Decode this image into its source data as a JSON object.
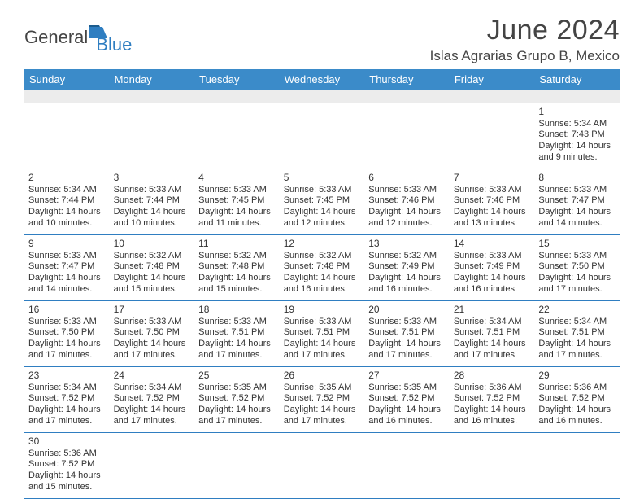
{
  "brand": {
    "general": "General",
    "blue": "Blue"
  },
  "header": {
    "month_title": "June 2024",
    "location": "Islas Agrarias Grupo B, Mexico"
  },
  "colors": {
    "header_bg": "#3b8bc9",
    "header_text": "#ffffff",
    "row_divider": "#2f7ec1",
    "blank_row_bg": "#ececec",
    "text": "#333333",
    "logo_accent": "#2f7ec1"
  },
  "typography": {
    "title_fontsize_pt": 26,
    "location_fontsize_pt": 13,
    "dayhead_fontsize_pt": 10,
    "cell_fontsize_pt": 8
  },
  "days": [
    "Sunday",
    "Monday",
    "Tuesday",
    "Wednesday",
    "Thursday",
    "Friday",
    "Saturday"
  ],
  "weeks": [
    [
      null,
      null,
      null,
      null,
      null,
      null,
      {
        "n": "1",
        "sr": "Sunrise: 5:34 AM",
        "ss": "Sunset: 7:43 PM",
        "dl1": "Daylight: 14 hours",
        "dl2": "and 9 minutes."
      }
    ],
    [
      {
        "n": "2",
        "sr": "Sunrise: 5:34 AM",
        "ss": "Sunset: 7:44 PM",
        "dl1": "Daylight: 14 hours",
        "dl2": "and 10 minutes."
      },
      {
        "n": "3",
        "sr": "Sunrise: 5:33 AM",
        "ss": "Sunset: 7:44 PM",
        "dl1": "Daylight: 14 hours",
        "dl2": "and 10 minutes."
      },
      {
        "n": "4",
        "sr": "Sunrise: 5:33 AM",
        "ss": "Sunset: 7:45 PM",
        "dl1": "Daylight: 14 hours",
        "dl2": "and 11 minutes."
      },
      {
        "n": "5",
        "sr": "Sunrise: 5:33 AM",
        "ss": "Sunset: 7:45 PM",
        "dl1": "Daylight: 14 hours",
        "dl2": "and 12 minutes."
      },
      {
        "n": "6",
        "sr": "Sunrise: 5:33 AM",
        "ss": "Sunset: 7:46 PM",
        "dl1": "Daylight: 14 hours",
        "dl2": "and 12 minutes."
      },
      {
        "n": "7",
        "sr": "Sunrise: 5:33 AM",
        "ss": "Sunset: 7:46 PM",
        "dl1": "Daylight: 14 hours",
        "dl2": "and 13 minutes."
      },
      {
        "n": "8",
        "sr": "Sunrise: 5:33 AM",
        "ss": "Sunset: 7:47 PM",
        "dl1": "Daylight: 14 hours",
        "dl2": "and 14 minutes."
      }
    ],
    [
      {
        "n": "9",
        "sr": "Sunrise: 5:33 AM",
        "ss": "Sunset: 7:47 PM",
        "dl1": "Daylight: 14 hours",
        "dl2": "and 14 minutes."
      },
      {
        "n": "10",
        "sr": "Sunrise: 5:32 AM",
        "ss": "Sunset: 7:48 PM",
        "dl1": "Daylight: 14 hours",
        "dl2": "and 15 minutes."
      },
      {
        "n": "11",
        "sr": "Sunrise: 5:32 AM",
        "ss": "Sunset: 7:48 PM",
        "dl1": "Daylight: 14 hours",
        "dl2": "and 15 minutes."
      },
      {
        "n": "12",
        "sr": "Sunrise: 5:32 AM",
        "ss": "Sunset: 7:48 PM",
        "dl1": "Daylight: 14 hours",
        "dl2": "and 16 minutes."
      },
      {
        "n": "13",
        "sr": "Sunrise: 5:32 AM",
        "ss": "Sunset: 7:49 PM",
        "dl1": "Daylight: 14 hours",
        "dl2": "and 16 minutes."
      },
      {
        "n": "14",
        "sr": "Sunrise: 5:33 AM",
        "ss": "Sunset: 7:49 PM",
        "dl1": "Daylight: 14 hours",
        "dl2": "and 16 minutes."
      },
      {
        "n": "15",
        "sr": "Sunrise: 5:33 AM",
        "ss": "Sunset: 7:50 PM",
        "dl1": "Daylight: 14 hours",
        "dl2": "and 17 minutes."
      }
    ],
    [
      {
        "n": "16",
        "sr": "Sunrise: 5:33 AM",
        "ss": "Sunset: 7:50 PM",
        "dl1": "Daylight: 14 hours",
        "dl2": "and 17 minutes."
      },
      {
        "n": "17",
        "sr": "Sunrise: 5:33 AM",
        "ss": "Sunset: 7:50 PM",
        "dl1": "Daylight: 14 hours",
        "dl2": "and 17 minutes."
      },
      {
        "n": "18",
        "sr": "Sunrise: 5:33 AM",
        "ss": "Sunset: 7:51 PM",
        "dl1": "Daylight: 14 hours",
        "dl2": "and 17 minutes."
      },
      {
        "n": "19",
        "sr": "Sunrise: 5:33 AM",
        "ss": "Sunset: 7:51 PM",
        "dl1": "Daylight: 14 hours",
        "dl2": "and 17 minutes."
      },
      {
        "n": "20",
        "sr": "Sunrise: 5:33 AM",
        "ss": "Sunset: 7:51 PM",
        "dl1": "Daylight: 14 hours",
        "dl2": "and 17 minutes."
      },
      {
        "n": "21",
        "sr": "Sunrise: 5:34 AM",
        "ss": "Sunset: 7:51 PM",
        "dl1": "Daylight: 14 hours",
        "dl2": "and 17 minutes."
      },
      {
        "n": "22",
        "sr": "Sunrise: 5:34 AM",
        "ss": "Sunset: 7:51 PM",
        "dl1": "Daylight: 14 hours",
        "dl2": "and 17 minutes."
      }
    ],
    [
      {
        "n": "23",
        "sr": "Sunrise: 5:34 AM",
        "ss": "Sunset: 7:52 PM",
        "dl1": "Daylight: 14 hours",
        "dl2": "and 17 minutes."
      },
      {
        "n": "24",
        "sr": "Sunrise: 5:34 AM",
        "ss": "Sunset: 7:52 PM",
        "dl1": "Daylight: 14 hours",
        "dl2": "and 17 minutes."
      },
      {
        "n": "25",
        "sr": "Sunrise: 5:35 AM",
        "ss": "Sunset: 7:52 PM",
        "dl1": "Daylight: 14 hours",
        "dl2": "and 17 minutes."
      },
      {
        "n": "26",
        "sr": "Sunrise: 5:35 AM",
        "ss": "Sunset: 7:52 PM",
        "dl1": "Daylight: 14 hours",
        "dl2": "and 17 minutes."
      },
      {
        "n": "27",
        "sr": "Sunrise: 5:35 AM",
        "ss": "Sunset: 7:52 PM",
        "dl1": "Daylight: 14 hours",
        "dl2": "and 16 minutes."
      },
      {
        "n": "28",
        "sr": "Sunrise: 5:36 AM",
        "ss": "Sunset: 7:52 PM",
        "dl1": "Daylight: 14 hours",
        "dl2": "and 16 minutes."
      },
      {
        "n": "29",
        "sr": "Sunrise: 5:36 AM",
        "ss": "Sunset: 7:52 PM",
        "dl1": "Daylight: 14 hours",
        "dl2": "and 16 minutes."
      }
    ],
    [
      {
        "n": "30",
        "sr": "Sunrise: 5:36 AM",
        "ss": "Sunset: 7:52 PM",
        "dl1": "Daylight: 14 hours",
        "dl2": "and 15 minutes."
      },
      null,
      null,
      null,
      null,
      null,
      null
    ]
  ]
}
